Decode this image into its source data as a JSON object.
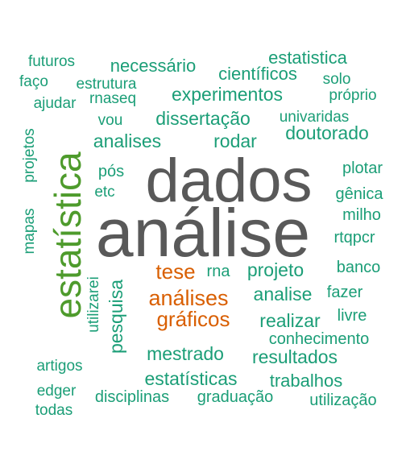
{
  "colors": {
    "gray": "#595959",
    "green": "#4e9b2c",
    "orange": "#d95f02",
    "teal": "#1b9e77",
    "background": "#ffffff"
  },
  "words": [
    {
      "text": "dados",
      "color": "gray",
      "rotated": false
    },
    {
      "text": "análise",
      "color": "gray",
      "rotated": false
    },
    {
      "text": "estatística",
      "color": "green",
      "rotated": true
    },
    {
      "text": "tese",
      "color": "orange",
      "rotated": false
    },
    {
      "text": "análises",
      "color": "orange",
      "rotated": false
    },
    {
      "text": "gráficos",
      "color": "orange",
      "rotated": false
    },
    {
      "text": "futuros",
      "color": "teal",
      "rotated": false
    },
    {
      "text": "faço",
      "color": "teal",
      "rotated": false
    },
    {
      "text": "ajudar",
      "color": "teal",
      "rotated": false
    },
    {
      "text": "necessário",
      "color": "teal",
      "rotated": false
    },
    {
      "text": "estrutura",
      "color": "teal",
      "rotated": false
    },
    {
      "text": "rnaseq",
      "color": "teal",
      "rotated": false
    },
    {
      "text": "vou",
      "color": "teal",
      "rotated": false
    },
    {
      "text": "estatistica",
      "color": "teal",
      "rotated": false
    },
    {
      "text": "científicos",
      "color": "teal",
      "rotated": false
    },
    {
      "text": "solo",
      "color": "teal",
      "rotated": false
    },
    {
      "text": "experimentos",
      "color": "teal",
      "rotated": false
    },
    {
      "text": "próprio",
      "color": "teal",
      "rotated": false
    },
    {
      "text": "dissertação",
      "color": "teal",
      "rotated": false
    },
    {
      "text": "univaridas",
      "color": "teal",
      "rotated": false
    },
    {
      "text": "doutorado",
      "color": "teal",
      "rotated": false
    },
    {
      "text": "analises",
      "color": "teal",
      "rotated": false
    },
    {
      "text": "rodar",
      "color": "teal",
      "rotated": false
    },
    {
      "text": "projetos",
      "color": "teal",
      "rotated": true
    },
    {
      "text": "mapas",
      "color": "teal",
      "rotated": true
    },
    {
      "text": "pós",
      "color": "teal",
      "rotated": false
    },
    {
      "text": "etc",
      "color": "teal",
      "rotated": false
    },
    {
      "text": "plotar",
      "color": "teal",
      "rotated": false
    },
    {
      "text": "gênica",
      "color": "teal",
      "rotated": false
    },
    {
      "text": "milho",
      "color": "teal",
      "rotated": false
    },
    {
      "text": "rtqpcr",
      "color": "teal",
      "rotated": false
    },
    {
      "text": "rna",
      "color": "teal",
      "rotated": false
    },
    {
      "text": "projeto",
      "color": "teal",
      "rotated": false
    },
    {
      "text": "banco",
      "color": "teal",
      "rotated": false
    },
    {
      "text": "pesquisa",
      "color": "teal",
      "rotated": true
    },
    {
      "text": "utilizarei",
      "color": "teal",
      "rotated": true
    },
    {
      "text": "analise",
      "color": "teal",
      "rotated": false
    },
    {
      "text": "fazer",
      "color": "teal",
      "rotated": false
    },
    {
      "text": "livre",
      "color": "teal",
      "rotated": false
    },
    {
      "text": "realizar",
      "color": "teal",
      "rotated": false
    },
    {
      "text": "conhecimento",
      "color": "teal",
      "rotated": false
    },
    {
      "text": "mestrado",
      "color": "teal",
      "rotated": false
    },
    {
      "text": "resultados",
      "color": "teal",
      "rotated": false
    },
    {
      "text": "artigos",
      "color": "teal",
      "rotated": false
    },
    {
      "text": "estatísticas",
      "color": "teal",
      "rotated": false
    },
    {
      "text": "trabalhos",
      "color": "teal",
      "rotated": false
    },
    {
      "text": "edger",
      "color": "teal",
      "rotated": false
    },
    {
      "text": "todas",
      "color": "teal",
      "rotated": false
    },
    {
      "text": "disciplinas",
      "color": "teal",
      "rotated": false
    },
    {
      "text": "graduação",
      "color": "teal",
      "rotated": false
    },
    {
      "text": "utilização",
      "color": "teal",
      "rotated": false
    }
  ]
}
